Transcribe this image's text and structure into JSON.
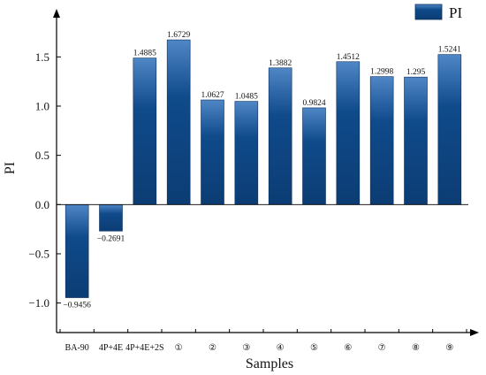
{
  "chart_data": {
    "type": "bar",
    "title": "",
    "xlabel": "Samples",
    "ylabel": "PI",
    "categories": [
      "BA-90",
      "4P+4E",
      "4P+4E+2S",
      "①",
      "②",
      "③",
      "④",
      "⑤",
      "⑥",
      "⑦",
      "⑧",
      "⑨"
    ],
    "series": [
      {
        "name": "PI",
        "values": [
          -0.9456,
          -0.2691,
          1.4885,
          1.6729,
          1.0627,
          1.0485,
          1.3882,
          0.9824,
          1.4512,
          1.2998,
          1.295,
          1.5241
        ],
        "data_labels": [
          "−0.9456",
          "−0.2691",
          "1.4885",
          "1.6729",
          "1.0627",
          "1.0485",
          "1.3882",
          "0.9824",
          "1.4512",
          "1.2998",
          "1.295",
          "1.5241"
        ]
      }
    ],
    "yticks": [
      -1.0,
      -0.5,
      0.0,
      0.5,
      1.0,
      1.5
    ],
    "ytick_labels": [
      "−1.0",
      "−0.5",
      "0.0",
      "0.5",
      "1.0",
      "1.5"
    ],
    "ylim": [
      -1.3,
      1.97
    ],
    "grid": false,
    "legend_position": "top-right",
    "colors": {
      "bar_top": "#4f86c6",
      "bar_mid": "#0f4a8a",
      "bar_edge": "#0a2f5c",
      "axis": "#000000"
    }
  }
}
